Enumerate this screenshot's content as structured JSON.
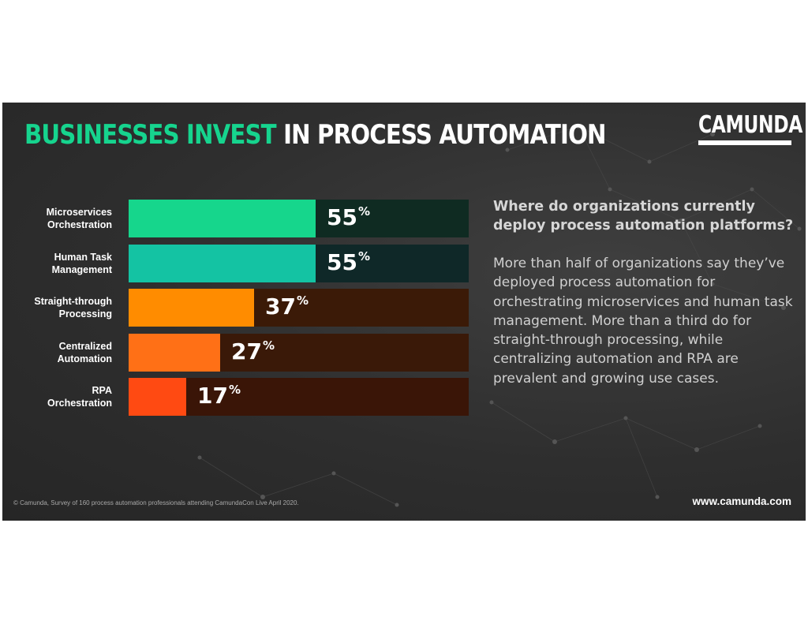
{
  "title": {
    "highlight": "BUSINESSES INVEST",
    "rest": " IN PROCESS AUTOMATION"
  },
  "logo": {
    "text": "CAMUNDA"
  },
  "chart_data": {
    "type": "bar",
    "orientation": "horizontal",
    "categories": [
      "Microservices\nOrchestration",
      "Human Task\nManagement",
      "Straight-through\nProcessing",
      "Centralized\nAutomation",
      "RPA\nOrchestration"
    ],
    "values": [
      55,
      55,
      37,
      27,
      17
    ],
    "value_suffix": "%",
    "xlim": [
      0,
      100
    ],
    "grid": false,
    "legend": "none",
    "colors": {
      "fills": [
        "#16d68c",
        "#14c3a3",
        "#ff8c00",
        "#ff7016",
        "#ff4a12"
      ],
      "tracks": [
        "#0f2b22",
        "#0f2828",
        "#3b1a07",
        "#3a1908",
        "#3a1507"
      ]
    }
  },
  "question": "Where do organizations currently deploy process automation platforms?",
  "body": "More than half of organizations say they’ve deployed process automation for orchestrating microservices and human task management. More than a third do for straight-through processing, while centralizing automation and RPA are prevalent and growing use cases.",
  "footer": {
    "source": "© Camunda, Survey of 160 process automation professionals attending CamundaCon Live April 2020.",
    "website": "www.camunda.com"
  }
}
